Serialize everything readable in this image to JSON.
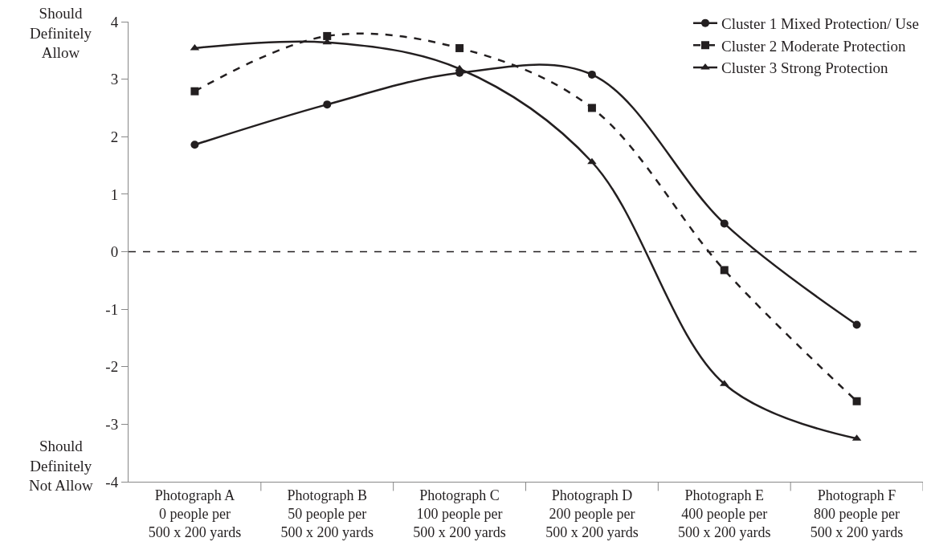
{
  "chart_data": {
    "type": "line",
    "categories": [
      "Photograph A\n0 people per\n500 x 200 yards",
      "Photograph B\n50 people per\n500 x 200 yards",
      "Photograph C\n100 people per\n500 x 200 yards",
      "Photograph D\n200 people per\n500 x 200 yards",
      "Photograph E\n400 people per\n500 x 200 yards",
      "Photograph F\n800 people per\n500 x 200 yards"
    ],
    "series": [
      {
        "name": "Cluster 1 Mixed Protection/ Use",
        "color": "#231f20",
        "marker": "circle",
        "line_style": "solid",
        "values": [
          1.86,
          2.56,
          3.11,
          3.08,
          0.49,
          -1.27
        ]
      },
      {
        "name": "Cluster 2 Moderate Protection",
        "color": "#231f20",
        "marker": "square",
        "line_style": "dashed",
        "values": [
          2.79,
          3.75,
          3.54,
          2.5,
          -0.32,
          -2.6
        ]
      },
      {
        "name": "Cluster 3 Strong Protection",
        "color": "#231f20",
        "marker": "triangle",
        "line_style": "solid",
        "values": [
          3.54,
          3.64,
          3.18,
          1.56,
          -2.3,
          -3.25
        ]
      }
    ],
    "ylim": [
      -4,
      4
    ],
    "yticks": [
      -4,
      -3,
      -2,
      -1,
      0,
      1,
      2,
      3,
      4
    ],
    "ref_lines": [
      {
        "axis": "y",
        "value": 0,
        "color": "#231f20",
        "line_style": "dashed"
      }
    ],
    "annotations": [
      "Should\nDefinitely\nAllow",
      "Should\nDefinitely\nNot Allow"
    ],
    "grid": false,
    "legend": "top right"
  }
}
